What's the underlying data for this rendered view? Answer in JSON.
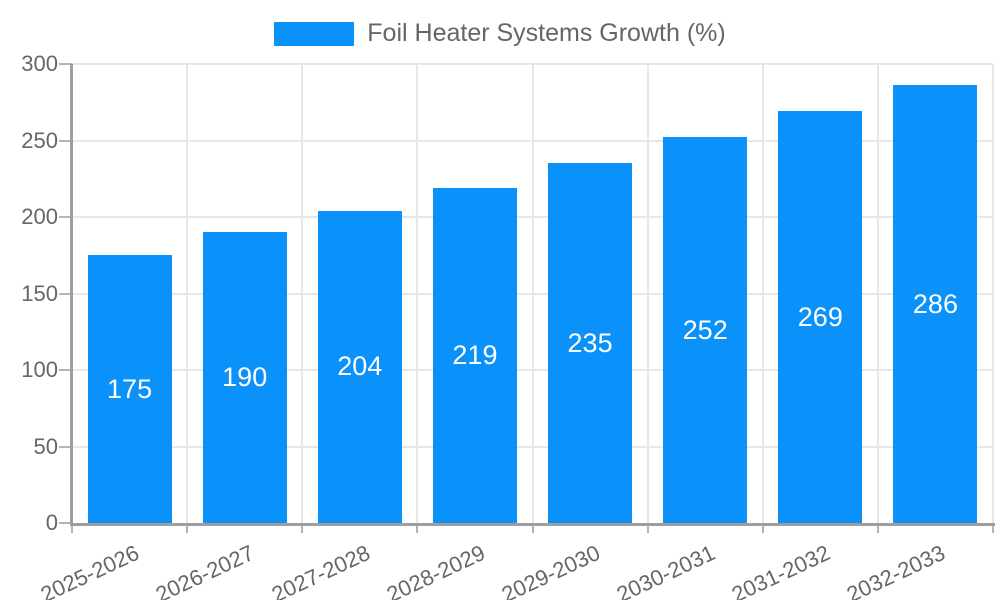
{
  "chart_data": {
    "type": "bar",
    "legend": "Foil Heater Systems Growth (%)",
    "legend_position": "top",
    "categories": [
      "2025-2026",
      "2026-2027",
      "2027-2028",
      "2028-2029",
      "2029-2030",
      "2030-2031",
      "2031-2032",
      "2032-2033"
    ],
    "values": [
      175,
      190,
      204,
      219,
      235,
      252,
      269,
      286
    ],
    "value_labels": [
      "175",
      "190",
      "204",
      "219",
      "235",
      "252",
      "269",
      "286"
    ],
    "xlabel": "",
    "ylabel": "",
    "ylim": [
      0,
      300
    ],
    "yticks": [
      0,
      50,
      100,
      150,
      200,
      250,
      300
    ],
    "grid": true,
    "bar_color": "#0a91fa",
    "value_label_color": "#ffffff",
    "grid_color": "#e7e7e7",
    "axis_color": "#9e9e9e",
    "tick_color": "#b5b5b5",
    "text_color": "#666666"
  }
}
